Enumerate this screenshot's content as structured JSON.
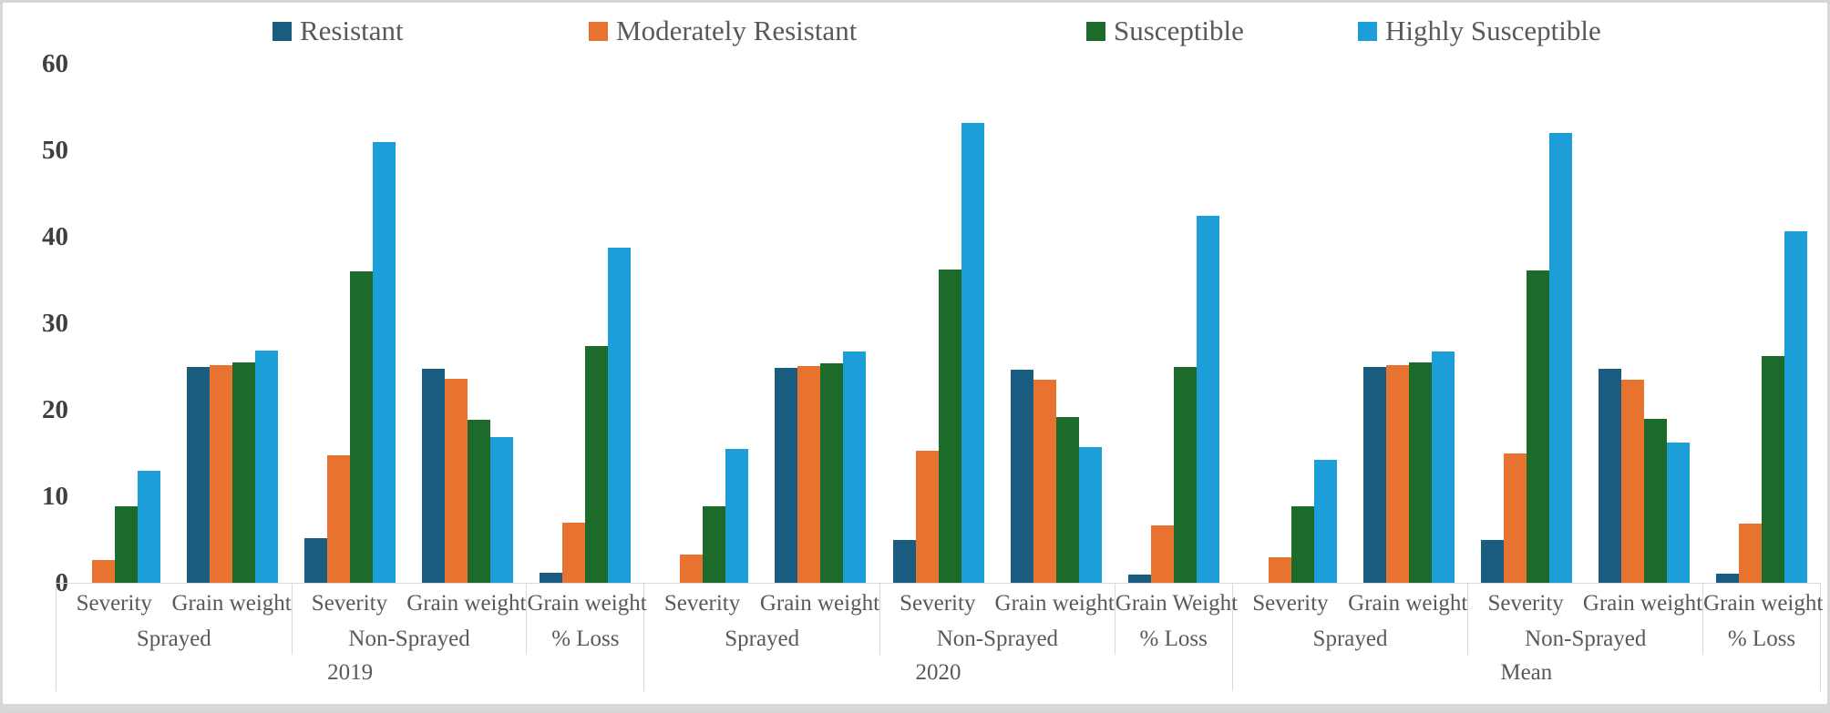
{
  "chart_data": {
    "type": "bar",
    "title": "",
    "xlabel": "",
    "ylabel": "",
    "ylim": [
      0,
      60
    ],
    "y_ticks": [
      0,
      10,
      20,
      30,
      40,
      50,
      60
    ],
    "grid": false,
    "legend_position": "top",
    "colors": {
      "axis_line": "#d9d9d9",
      "tick_text": "#3f3f3f",
      "label_text": "#595959"
    },
    "series": [
      {
        "name": "Resistant",
        "color": "#1a5d80"
      },
      {
        "name": "Moderately Resistant",
        "color": "#e87331"
      },
      {
        "name": "Susceptible",
        "color": "#1d6b2a"
      },
      {
        "name": "Highly Susceptible",
        "color": "#1c9fd9"
      }
    ],
    "groups": [
      {
        "label": "2019",
        "subgroups": [
          {
            "label": "Sprayed",
            "clusters": [
              {
                "label": "Severity",
                "values": [
                  0,
                  2.6,
                  8.8,
                  13.0
                ]
              },
              {
                "label": "Grain weight",
                "values": [
                  24.9,
                  25.2,
                  25.5,
                  26.8
                ]
              }
            ]
          },
          {
            "label": "Non-Sprayed",
            "clusters": [
              {
                "label": "Severity",
                "values": [
                  5.2,
                  14.7,
                  36.0,
                  50.9
                ]
              },
              {
                "label": "Grain weight",
                "values": [
                  24.7,
                  23.6,
                  18.8,
                  16.8
                ]
              }
            ]
          },
          {
            "label": "% Loss",
            "clusters": [
              {
                "label": "Grain weight",
                "values": [
                  1.2,
                  7.0,
                  27.4,
                  38.7
                ]
              }
            ]
          }
        ]
      },
      {
        "label": "2020",
        "subgroups": [
          {
            "label": "Sprayed",
            "clusters": [
              {
                "label": "Severity",
                "values": [
                  0,
                  3.3,
                  8.8,
                  15.5
                ]
              },
              {
                "label": "Grain weight",
                "values": [
                  24.8,
                  25.1,
                  25.4,
                  26.7
                ]
              }
            ]
          },
          {
            "label": "Non-Sprayed",
            "clusters": [
              {
                "label": "Severity",
                "values": [
                  4.9,
                  15.3,
                  36.2,
                  53.2
                ]
              },
              {
                "label": "Grain weight",
                "values": [
                  24.6,
                  23.5,
                  19.2,
                  15.7
                ]
              }
            ]
          },
          {
            "label": "% Loss",
            "clusters": [
              {
                "label": "Grain Weight",
                "values": [
                  1.0,
                  6.6,
                  25.0,
                  42.4
                ]
              }
            ]
          }
        ]
      },
      {
        "label": "Mean",
        "subgroups": [
          {
            "label": "Sprayed",
            "clusters": [
              {
                "label": "Severity",
                "values": [
                  0,
                  3.0,
                  8.8,
                  14.2
                ]
              },
              {
                "label": "Grain weight",
                "values": [
                  24.9,
                  25.2,
                  25.5,
                  26.7
                ]
              }
            ]
          },
          {
            "label": "Non-Sprayed",
            "clusters": [
              {
                "label": "Severity",
                "values": [
                  5.0,
                  15.0,
                  36.1,
                  52.0
                ]
              },
              {
                "label": "Grain weight",
                "values": [
                  24.7,
                  23.5,
                  19.0,
                  16.2
                ]
              }
            ]
          },
          {
            "label": "% Loss",
            "clusters": [
              {
                "label": "Grain weight",
                "values": [
                  1.1,
                  6.8,
                  26.2,
                  40.6
                ]
              }
            ]
          }
        ]
      }
    ]
  }
}
